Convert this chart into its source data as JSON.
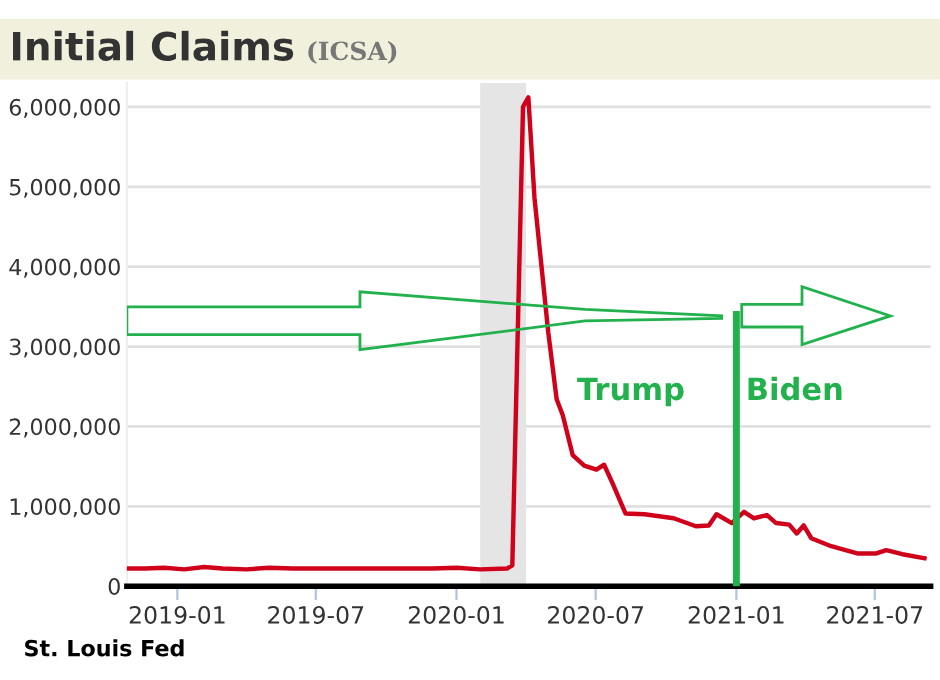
{
  "chart_data": {
    "type": "line",
    "title": "Initial Claims",
    "subtitle": "(ICSA)",
    "x": [
      "2018-10-27",
      "2018-11-20",
      "2018-12-15",
      "2019-01-10",
      "2019-02-05",
      "2019-03-01",
      "2019-04-01",
      "2019-05-01",
      "2019-06-01",
      "2019-07-01",
      "2019-08-01",
      "2019-09-01",
      "2019-10-01",
      "2019-11-01",
      "2019-12-01",
      "2020-01-01",
      "2020-02-01",
      "2020-03-07",
      "2020-03-14",
      "2020-03-28",
      "2020-04-04",
      "2020-04-12",
      "2020-04-30",
      "2020-05-11",
      "2020-05-19",
      "2020-06-01",
      "2020-06-16",
      "2020-07-02",
      "2020-07-12",
      "2020-07-23",
      "2020-08-09",
      "2020-09-03",
      "2020-10-11",
      "2020-11-09",
      "2020-11-26",
      "2020-12-06",
      "2020-12-26",
      "2021-01-11",
      "2021-01-24",
      "2021-02-10",
      "2021-02-22",
      "2021-03-11",
      "2021-03-21",
      "2021-03-30",
      "2021-04-09",
      "2021-05-05",
      "2021-06-08",
      "2021-07-03",
      "2021-07-16",
      "2021-08-06",
      "2021-09-04"
    ],
    "series": [
      {
        "color": "#d0021b",
        "values": [
          220000,
          220000,
          230000,
          210000,
          240000,
          220000,
          210000,
          230000,
          220000,
          220000,
          220000,
          220000,
          220000,
          220000,
          220000,
          230000,
          210000,
          220000,
          260000,
          6000000,
          6120000,
          4860000,
          3180000,
          2340000,
          2140000,
          1640000,
          1510000,
          1460000,
          1520000,
          1290000,
          910000,
          900000,
          850000,
          750000,
          760000,
          900000,
          790000,
          930000,
          850000,
          890000,
          790000,
          770000,
          660000,
          760000,
          600000,
          500000,
          410000,
          410000,
          450000,
          400000,
          350000
        ]
      }
    ],
    "xlim": [
      "2018-10-27",
      "2021-09-12"
    ],
    "ylim": [
      0,
      6300000
    ],
    "xticks": [
      "2019-01",
      "2019-07",
      "2020-01",
      "2020-07",
      "2021-01",
      "2021-07"
    ],
    "yticks": [
      0,
      {
        "value": 1000000,
        "label": "1,000,000"
      },
      {
        "value": 2000000,
        "label": "2,000,000"
      },
      {
        "value": 3000000,
        "label": "3,000,000"
      },
      {
        "value": 4000000,
        "label": "4,000,000"
      },
      {
        "value": 5000000,
        "label": "5,000,000"
      },
      {
        "value": 6000000,
        "label": "6,000,000"
      }
    ],
    "bands": [
      {
        "axis": "x",
        "from": "2020-02-01",
        "to": "2020-04-01",
        "color": "#e5e5e5"
      }
    ],
    "ref_lines": [
      {
        "axis": "x",
        "value": "2021-01-01",
        "color": "#22b14c"
      }
    ],
    "annotations": [
      "Trump",
      "Biden",
      "St. Louis Fed"
    ],
    "grid": "y",
    "legend": false,
    "marker": "none",
    "line_style": "solid"
  }
}
